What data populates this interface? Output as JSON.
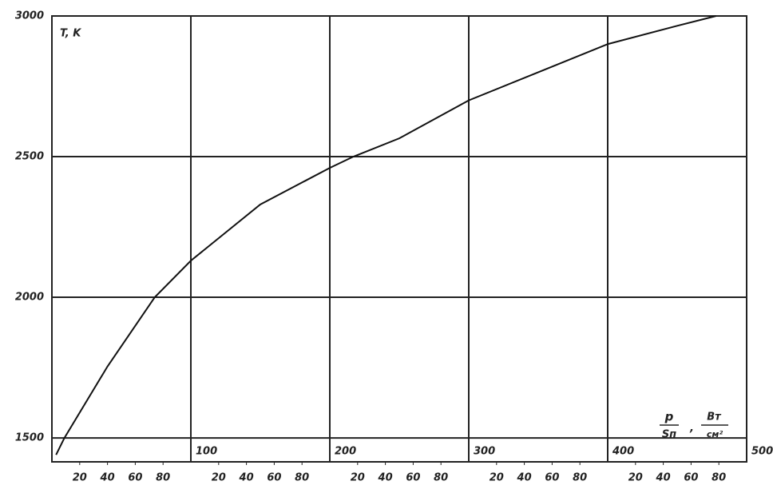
{
  "chart_data": {
    "type": "line",
    "ylabel": "T, K",
    "xlabel": {
      "numerator": "p",
      "denominator": "Sп"
    },
    "xunit": {
      "numerator": "Вт",
      "denominator": "см²"
    },
    "x": [
      3,
      9,
      40,
      74,
      100,
      150,
      200,
      217,
      250,
      300,
      350,
      400,
      450,
      478
    ],
    "series": [
      {
        "color": "#111",
        "values": [
          1440,
          1500,
          1754,
          2000,
          2130,
          2330,
          2460,
          2500,
          2565,
          2700,
          2800,
          2900,
          2965,
          3000
        ]
      }
    ],
    "xlim": [
      0,
      500
    ],
    "ylim": [
      1415,
      3000
    ],
    "xticks": [
      100,
      200,
      300,
      400,
      500
    ],
    "xminorticks": [
      20,
      40,
      60,
      80,
      {
        "value": 120,
        "label": "20"
      },
      {
        "value": 140,
        "label": "40"
      },
      {
        "value": 160,
        "label": "60"
      },
      {
        "value": 180,
        "label": "80"
      },
      {
        "value": 220,
        "label": "20"
      },
      {
        "value": 240,
        "label": "40"
      },
      {
        "value": 260,
        "label": "60"
      },
      {
        "value": 280,
        "label": "80"
      },
      {
        "value": 320,
        "label": "20"
      },
      {
        "value": 340,
        "label": "40"
      },
      {
        "value": 360,
        "label": "60"
      },
      {
        "value": 380,
        "label": "80"
      },
      {
        "value": 420,
        "label": "20"
      },
      {
        "value": 440,
        "label": "40"
      },
      {
        "value": 460,
        "label": "60"
      },
      {
        "value": 480,
        "label": "80"
      }
    ],
    "yticks": [
      1500,
      2000,
      2500,
      3000
    ],
    "grid": true
  }
}
